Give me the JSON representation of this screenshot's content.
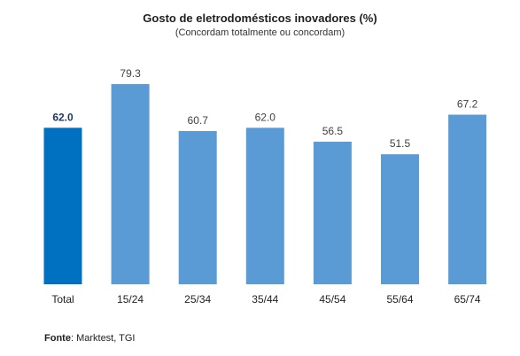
{
  "chart_data": {
    "type": "bar",
    "title": "Gosto de eletrodomésticos inovadores (%)",
    "subtitle": "(Concordam totalmente ou concordam)",
    "categories": [
      "Total",
      "15/24",
      "25/34",
      "35/44",
      "45/54",
      "55/64",
      "65/74"
    ],
    "values": [
      62.0,
      79.3,
      60.7,
      62.0,
      56.5,
      51.5,
      67.2
    ],
    "value_labels": [
      "62.0",
      "79.3",
      "60.7",
      "62.0",
      "56.5",
      "51.5",
      "67.2"
    ],
    "highlight_index": 0,
    "colors": {
      "highlight": "#0070c0",
      "bar": "#5b9bd5",
      "highlight_label": "#1f3864",
      "label": "#404040"
    },
    "ylim": [
      0,
      79.3
    ],
    "grid": false,
    "xlabel": "",
    "ylabel": ""
  },
  "footer": {
    "source_label": "Fonte",
    "source_text": ": Marktest, TGI"
  }
}
